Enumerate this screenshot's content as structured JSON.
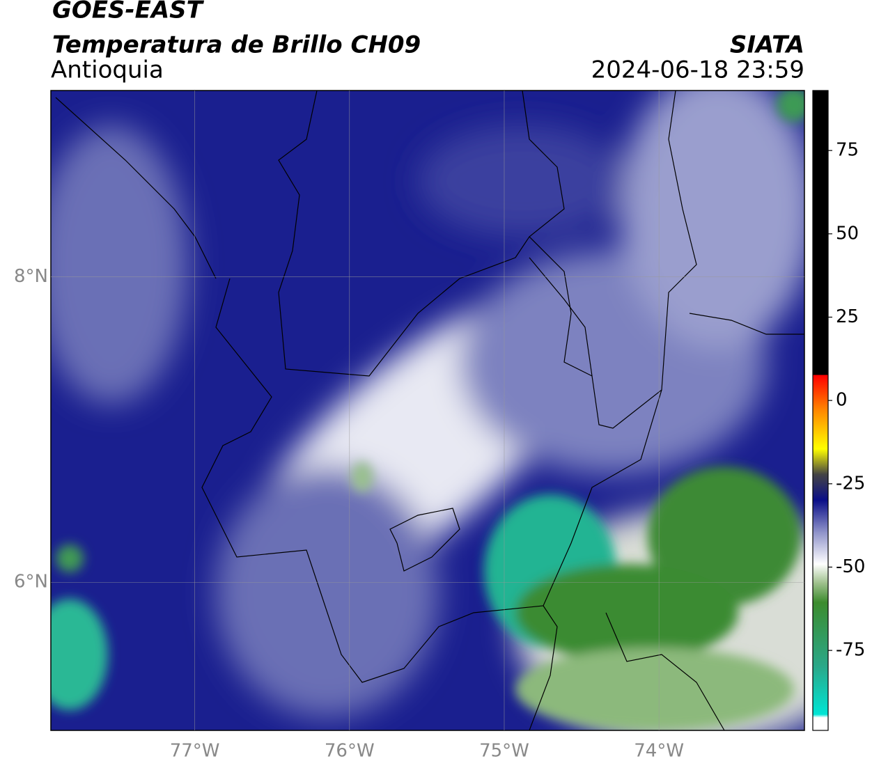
{
  "header": {
    "title": "GOES-EAST",
    "subtitle": "Temperatura de Brillo CH09",
    "region": "Antioquia",
    "agency": "SIATA",
    "datetime": "2024-06-18 23:59"
  },
  "map": {
    "lon_lim": [
      -77.93,
      -73.06
    ],
    "lat_lim": [
      5.03,
      9.22
    ],
    "lon_ticks": [
      {
        "value": -77,
        "label": "77°W"
      },
      {
        "value": -76,
        "label": "76°W"
      },
      {
        "value": -75,
        "label": "75°W"
      },
      {
        "value": -74,
        "label": "74°W"
      }
    ],
    "lat_ticks": [
      {
        "value": 8,
        "label": "8°N"
      },
      {
        "value": 6,
        "label": "6°N"
      }
    ]
  },
  "colorbar": {
    "lim": [
      -99,
      93
    ],
    "ticks": [
      75,
      50,
      25,
      0,
      -25,
      -50,
      -75
    ]
  }
}
